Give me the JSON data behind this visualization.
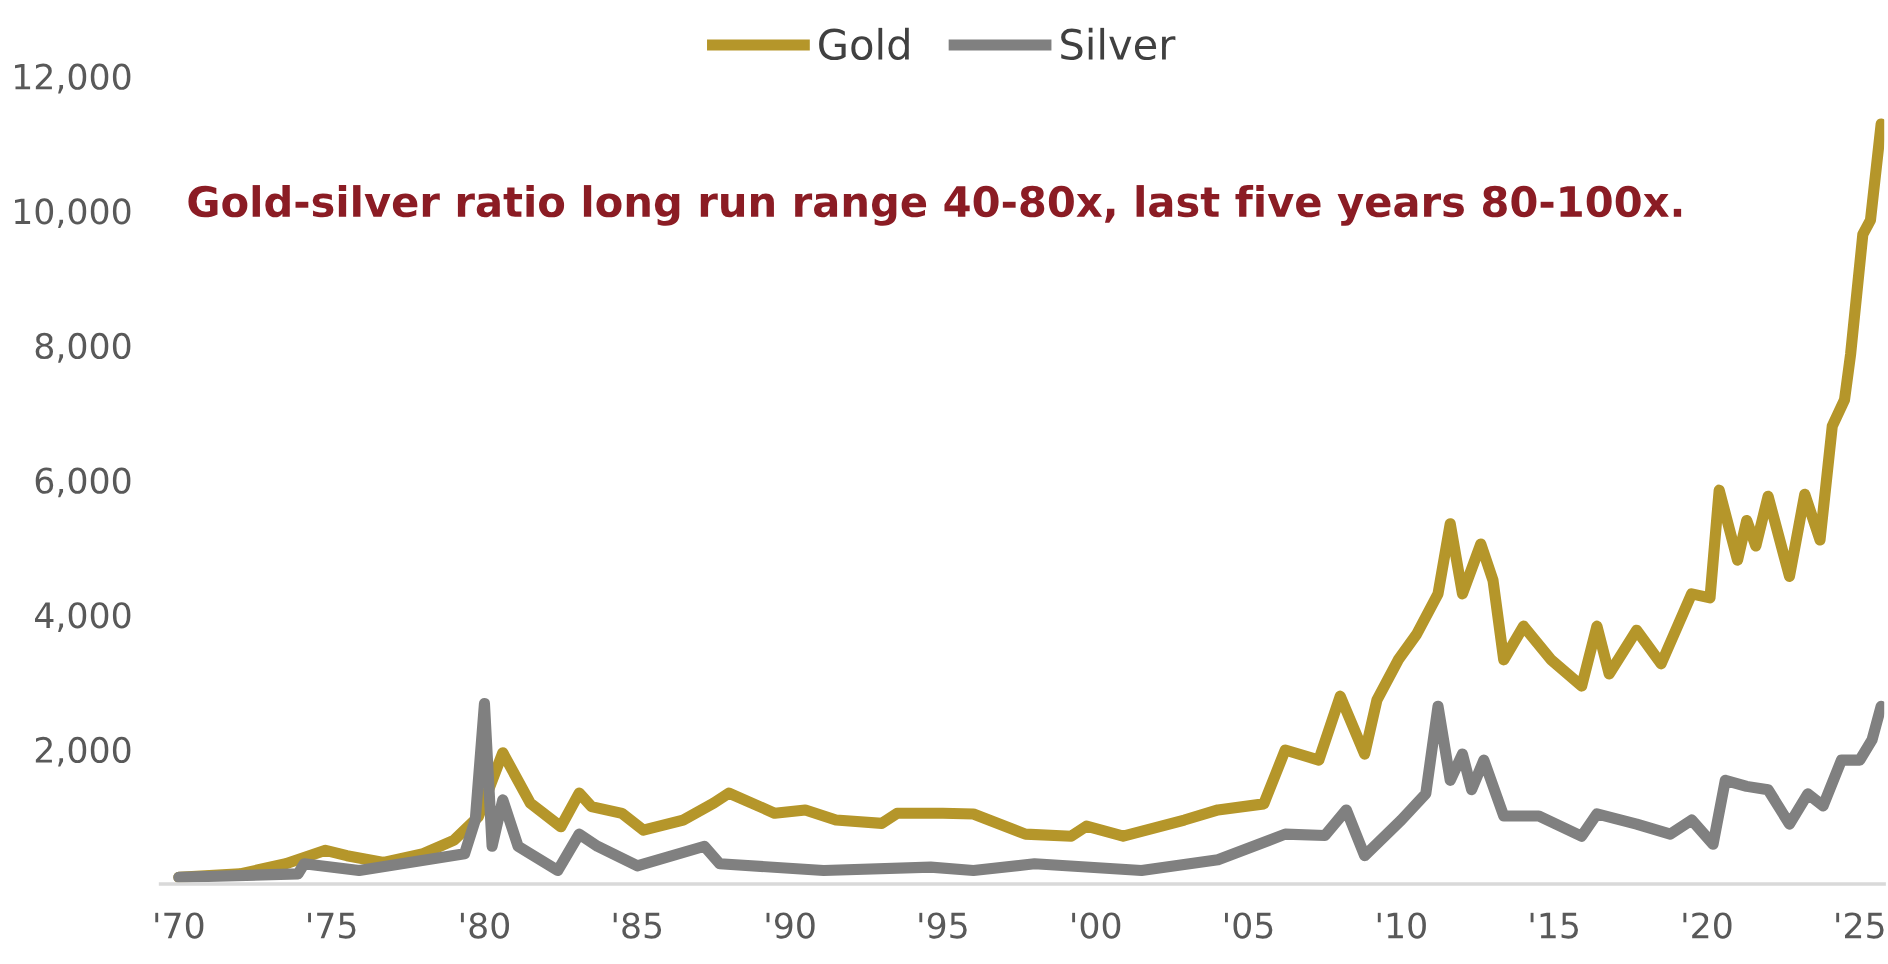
{
  "chart_data": {
    "type": "line",
    "annotations": [
      "Gold-silver ratio long run range 40-80x, last five years 80-100x."
    ],
    "xlim": [
      1969.4,
      2025.8
    ],
    "xticks": [
      {
        "value": 1970,
        "label": "'70"
      },
      {
        "value": 1975,
        "label": "'75"
      },
      {
        "value": 1980,
        "label": "'80"
      },
      {
        "value": 1985,
        "label": "'85"
      },
      {
        "value": 1990,
        "label": "'90"
      },
      {
        "value": 1995,
        "label": "'95"
      },
      {
        "value": 2000,
        "label": "'00"
      },
      {
        "value": 2005,
        "label": "'05"
      },
      {
        "value": 2010,
        "label": "'10"
      },
      {
        "value": 2015,
        "label": "'15"
      },
      {
        "value": 2020,
        "label": "'20"
      },
      {
        "value": 2025,
        "label": "'25"
      }
    ],
    "ylim": [
      0,
      12000
    ],
    "yticks": [
      {
        "value": 2000,
        "label": "2,000"
      },
      {
        "value": 4000,
        "label": "4,000"
      },
      {
        "value": 6000,
        "label": "6,000"
      },
      {
        "value": 8000,
        "label": "8,000"
      },
      {
        "value": 10000,
        "label": "10,000"
      },
      {
        "value": 12000,
        "label": "12,000"
      }
    ],
    "grid": false,
    "legend": "top",
    "marker": "none",
    "line_style": "solid",
    "series": [
      {
        "name": "Gold",
        "color": "#b5962a",
        "x": [
          1970,
          1972,
          1973.5,
          1974.8,
          1975.5,
          1976.7,
          1978,
          1979,
          1979.8,
          1980.6,
          1981.5,
          1982.5,
          1983.1,
          1983.5,
          1984.5,
          1985.2,
          1986.5,
          1987.5,
          1988,
          1989.5,
          1990.5,
          1991.5,
          1993,
          1993.5,
          1995,
          1996,
          1997.7,
          1999.2,
          1999.7,
          2000.9,
          2002.9,
          2004,
          2005.5,
          2006.2,
          2007.3,
          2008,
          2008.8,
          2009.2,
          2009.9,
          2010.5,
          2011.2,
          2011.6,
          2012,
          2012.6,
          2013,
          2013.35,
          2014,
          2014.9,
          2015.9,
          2016.4,
          2016.8,
          2017.7,
          2018.5,
          2019.5,
          2020.1,
          2020.4,
          2021,
          2021.3,
          2021.6,
          2022,
          2022.7,
          2023.2,
          2023.7,
          2024.1,
          2024.5,
          2024.7,
          2025.1,
          2025.35,
          2025.7
        ],
        "values": [
          100,
          150,
          300,
          500,
          420,
          320,
          450,
          650,
          1000,
          1950,
          1200,
          850,
          1350,
          1150,
          1050,
          800,
          950,
          1200,
          1350,
          1050,
          1100,
          950,
          900,
          1050,
          1050,
          1040,
          740,
          710,
          860,
          710,
          950,
          1100,
          1190,
          1990,
          1840,
          2790,
          1930,
          2730,
          3330,
          3710,
          4310,
          5350,
          4310,
          5050,
          4510,
          3330,
          3830,
          3330,
          2940,
          3830,
          3120,
          3770,
          3270,
          4310,
          4250,
          5850,
          4810,
          5400,
          5020,
          5760,
          4570,
          5790,
          5110,
          6800,
          7190,
          7870,
          9650,
          9860,
          11290
        ]
      },
      {
        "name": "Silver",
        "color": "#808080",
        "x": [
          1970,
          1973.9,
          1974.1,
          1975.9,
          1979.35,
          1979.7,
          1980,
          1980.25,
          1980.6,
          1981.1,
          1981.5,
          1982.4,
          1983.1,
          1983.7,
          1985,
          1987.2,
          1987.7,
          1991.1,
          1994.6,
          1996,
          1998,
          2001.5,
          2004,
          2006.2,
          2007.5,
          2008.2,
          2008.8,
          2010,
          2010.8,
          2011.2,
          2011.6,
          2012,
          2012.3,
          2012.7,
          2013.35,
          2014.5,
          2015.9,
          2016.4,
          2017.7,
          2018.8,
          2019.5,
          2020.2,
          2020.6,
          2021.3,
          2022,
          2022.7,
          2023.3,
          2023.8,
          2024.4,
          2025,
          2025.4,
          2025.7
        ],
        "values": [
          100,
          150,
          300,
          200,
          450,
          950,
          2680,
          560,
          1250,
          560,
          450,
          200,
          740,
          560,
          270,
          560,
          300,
          200,
          250,
          200,
          300,
          200,
          360,
          740,
          720,
          1100,
          420,
          950,
          1340,
          2640,
          1540,
          1930,
          1400,
          1840,
          1010,
          1010,
          710,
          1040,
          890,
          740,
          950,
          590,
          1540,
          1450,
          1400,
          890,
          1340,
          1160,
          1840,
          1840,
          2140,
          2640
        ]
      }
    ]
  }
}
